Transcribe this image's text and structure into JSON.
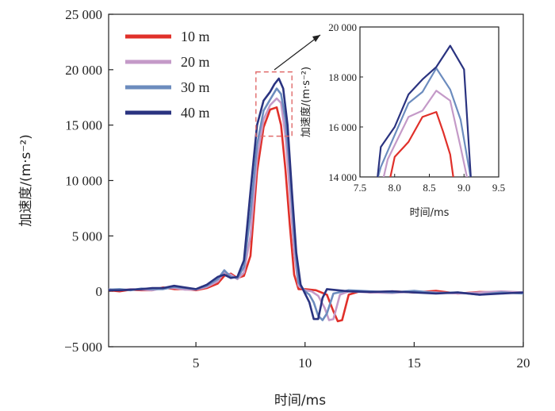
{
  "chart_data": [
    {
      "type": "line",
      "xlabel": "时间/ms",
      "ylabel": "加速度/(m·s⁻²)",
      "xlim": [
        1,
        20
      ],
      "ylim": [
        -5000,
        25000
      ],
      "xticks": [
        5,
        10,
        15,
        20
      ],
      "xtick_labels": [
        "5",
        "10",
        "15",
        "20"
      ],
      "yticks": [
        -5000,
        0,
        5000,
        10000,
        15000,
        20000,
        25000
      ],
      "ytick_labels": [
        "−5 000",
        "0",
        "5 000",
        "10 000",
        "15 000",
        "20 000",
        "25 000"
      ],
      "legend_position": "top-left",
      "series": [
        {
          "name": "10 m",
          "color": "#e0302a",
          "x": [
            1,
            1.5,
            2,
            2.5,
            3,
            3.5,
            4,
            4.5,
            5,
            5.5,
            6,
            6.3,
            6.6,
            6.9,
            7.2,
            7.5,
            7.8,
            8.1,
            8.4,
            8.7,
            8.9,
            9.1,
            9.3,
            9.5,
            9.7,
            10,
            10.5,
            11,
            11.3,
            11.5,
            11.7,
            12,
            12.5,
            13,
            14,
            15,
            16,
            17,
            18,
            19,
            20
          ],
          "y": [
            100,
            0,
            150,
            100,
            100,
            350,
            200,
            200,
            100,
            300,
            700,
            1400,
            1600,
            1200,
            1400,
            3200,
            10800,
            14800,
            16400,
            16600,
            15000,
            11000,
            6000,
            1500,
            200,
            200,
            100,
            -300,
            -1800,
            -2700,
            -2600,
            -300,
            0,
            -100,
            0,
            -100,
            50,
            -200,
            -50,
            -100,
            -150
          ]
        },
        {
          "name": "20 m",
          "color": "#c49ac8",
          "x": [
            1,
            1.5,
            2,
            2.5,
            3,
            3.5,
            4,
            4.5,
            5,
            5.5,
            6,
            6.3,
            6.6,
            6.9,
            7.2,
            7.5,
            7.8,
            8.1,
            8.4,
            8.7,
            8.9,
            9.1,
            9.3,
            9.5,
            9.7,
            10,
            10.3,
            10.6,
            10.9,
            11.1,
            11.3,
            11.6,
            12,
            13,
            14,
            15,
            16,
            17,
            18,
            19,
            20
          ],
          "y": [
            200,
            100,
            200,
            150,
            100,
            300,
            300,
            150,
            150,
            400,
            900,
            1700,
            1500,
            1100,
            1700,
            5000,
            12000,
            15500,
            16800,
            17400,
            17000,
            14000,
            9000,
            3500,
            500,
            100,
            0,
            -400,
            -1500,
            -2600,
            -2500,
            -300,
            0,
            -100,
            -150,
            0,
            -100,
            -200,
            -100,
            0,
            -100
          ]
        },
        {
          "name": "30 m",
          "color": "#6c8cbe",
          "x": [
            1,
            1.5,
            2,
            2.5,
            3,
            3.5,
            4,
            4.5,
            5,
            5.5,
            6,
            6.3,
            6.6,
            6.9,
            7.2,
            7.5,
            7.8,
            8.1,
            8.4,
            8.7,
            8.9,
            9.1,
            9.3,
            9.5,
            9.7,
            10,
            10.2,
            10.4,
            10.6,
            10.8,
            11,
            11.3,
            12,
            13,
            14,
            15,
            16,
            17,
            18,
            19,
            20
          ],
          "y": [
            150,
            200,
            100,
            250,
            200,
            200,
            400,
            300,
            200,
            500,
            1100,
            1900,
            1300,
            1200,
            2200,
            7000,
            13200,
            16300,
            17300,
            18300,
            17800,
            15500,
            11000,
            5000,
            800,
            0,
            -300,
            -1000,
            -2200,
            -2600,
            -2000,
            -200,
            100,
            0,
            -100,
            50,
            -150,
            -100,
            -300,
            -100,
            -200
          ]
        },
        {
          "name": "40 m",
          "color": "#2a3380",
          "x": [
            1,
            1.5,
            2,
            2.5,
            3,
            3.5,
            4,
            4.5,
            5,
            5.5,
            6,
            6.3,
            6.6,
            6.9,
            7.2,
            7.5,
            7.8,
            8.1,
            8.4,
            8.6,
            8.8,
            9.0,
            9.2,
            9.4,
            9.6,
            9.8,
            10,
            10.2,
            10.4,
            10.6,
            10.8,
            11,
            11.5,
            12,
            13,
            14,
            15,
            16,
            17,
            18,
            19,
            20
          ],
          "y": [
            100,
            100,
            150,
            200,
            300,
            300,
            500,
            350,
            200,
            600,
            1300,
            1500,
            1200,
            1300,
            2800,
            9000,
            15000,
            17200,
            18000,
            18700,
            19200,
            18300,
            15000,
            9000,
            3500,
            600,
            -200,
            -1000,
            -2500,
            -2500,
            -600,
            200,
            100,
            0,
            -50,
            0,
            -100,
            -200,
            -100,
            -300,
            -200,
            -100
          ]
        }
      ]
    },
    {
      "type": "line",
      "xlabel": "时间/ms",
      "ylabel": "加速度/(m·s⁻²)",
      "xlim": [
        7.5,
        9.5
      ],
      "ylim": [
        14000,
        20000
      ],
      "xticks": [
        7.5,
        8.0,
        8.5,
        9.0,
        9.5
      ],
      "xtick_labels": [
        "7.5",
        "8.0",
        "8.5",
        "9.0",
        "9.5"
      ],
      "yticks": [
        14000,
        16000,
        18000,
        20000
      ],
      "ytick_labels": [
        "14 000",
        "16 000",
        "18 000",
        "20 000"
      ],
      "series": [
        {
          "name": "10 m",
          "color": "#e0302a",
          "x": [
            7.9,
            8.0,
            8.2,
            8.4,
            8.6,
            8.7,
            8.8,
            8.85
          ],
          "y": [
            13500,
            14800,
            15400,
            16400,
            16600,
            15800,
            14900,
            13900
          ]
        },
        {
          "name": "20 m",
          "color": "#c49ac8",
          "x": [
            7.8,
            7.9,
            8.2,
            8.4,
            8.6,
            8.8,
            8.95,
            9.05
          ],
          "y": [
            13500,
            14700,
            16400,
            16650,
            17450,
            17050,
            15200,
            13900
          ]
        },
        {
          "name": "30 m",
          "color": "#6c8cbe",
          "x": [
            7.75,
            7.8,
            8.2,
            8.4,
            8.6,
            8.8,
            8.95,
            9.1
          ],
          "y": [
            13900,
            14400,
            16950,
            17400,
            18350,
            17500,
            16300,
            13900
          ]
        },
        {
          "name": "40 m",
          "color": "#2a3380",
          "x": [
            7.75,
            7.8,
            8.0,
            8.2,
            8.4,
            8.6,
            8.8,
            9.0,
            9.1
          ],
          "y": [
            13900,
            15200,
            16000,
            17300,
            17900,
            18400,
            19250,
            18300,
            13900
          ]
        }
      ]
    }
  ]
}
